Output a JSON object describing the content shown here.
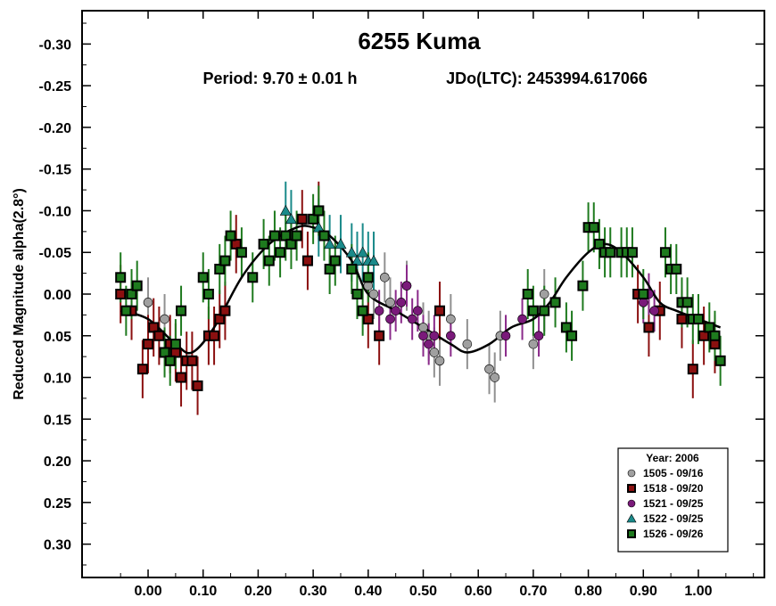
{
  "chart_data": {
    "type": "scatter",
    "title": "6255 Kuma",
    "subtitle_period": "Period: 9.70 ± 0.01 h",
    "subtitle_epoch": "JDo(LTC): 2453994.617066",
    "xlabel": "",
    "ylabel": "Reduced Magnitude alpha(2.8°)",
    "xlim": [
      -0.12,
      1.12
    ],
    "ylim": [
      -0.34,
      0.34
    ],
    "y_inverted": true,
    "x_ticks": [
      "0.00",
      "0.10",
      "0.20",
      "0.30",
      "0.40",
      "0.50",
      "0.60",
      "0.70",
      "0.80",
      "0.90",
      "1.00"
    ],
    "y_ticks": [
      "-0.30",
      "-0.25",
      "-0.20",
      "-0.15",
      "-0.10",
      "-0.05",
      "0.00",
      "0.05",
      "0.10",
      "0.15",
      "0.20",
      "0.25",
      "0.30"
    ],
    "legend_title": "Year: 2006",
    "legend_position": "bottom-right",
    "series": [
      {
        "name": "1505 - 09/16",
        "marker": "circle",
        "color": "#a0a0a0",
        "errcolor": "#909090",
        "err": 0.03,
        "x": [
          0.0,
          0.03,
          0.4,
          0.41,
          0.43,
          0.44,
          0.47,
          0.5,
          0.51,
          0.52,
          0.53,
          0.55,
          0.58,
          0.62,
          0.63,
          0.64,
          0.7,
          0.72
        ],
        "y": [
          0.01,
          0.03,
          -0.01,
          0.0,
          -0.02,
          0.01,
          -0.01,
          0.04,
          0.05,
          0.07,
          0.08,
          0.03,
          0.06,
          0.09,
          0.1,
          0.05,
          0.06,
          0.0
        ]
      },
      {
        "name": "1518 - 09/20",
        "marker": "square",
        "color": "#8b1010",
        "errcolor": "#8b1010",
        "err": 0.035,
        "x": [
          -0.05,
          -0.03,
          -0.01,
          0.0,
          0.01,
          0.02,
          0.04,
          0.05,
          0.06,
          0.07,
          0.08,
          0.09,
          0.11,
          0.12,
          0.13,
          0.14,
          0.16,
          0.28,
          0.29,
          0.31,
          0.4,
          0.42,
          0.53,
          0.89,
          0.91,
          0.93,
          0.97,
          0.99,
          1.01,
          1.03
        ],
        "y": [
          0.0,
          0.02,
          0.09,
          0.06,
          0.04,
          0.05,
          0.06,
          0.07,
          0.1,
          0.08,
          0.08,
          0.11,
          0.05,
          0.05,
          0.03,
          0.02,
          -0.06,
          -0.09,
          -0.04,
          -0.1,
          0.03,
          0.05,
          0.02,
          0.0,
          0.04,
          0.02,
          0.03,
          0.09,
          0.05,
          0.06
        ]
      },
      {
        "name": "1521 - 09/25",
        "marker": "circle",
        "color": "#7a1a7a",
        "errcolor": "#8a2a8a",
        "err": 0.025,
        "x": [
          0.42,
          0.44,
          0.45,
          0.46,
          0.47,
          0.48,
          0.49,
          0.5,
          0.51,
          0.52,
          0.55,
          0.65,
          0.68,
          0.71,
          0.72,
          0.9,
          0.91,
          0.92
        ],
        "y": [
          0.02,
          0.03,
          0.02,
          0.01,
          -0.01,
          0.03,
          0.02,
          0.05,
          0.06,
          0.05,
          0.05,
          0.05,
          0.03,
          0.05,
          0.02,
          0.01,
          0.0,
          0.02
        ]
      },
      {
        "name": "1522 - 09/25",
        "marker": "triangle",
        "color": "#1a8a8a",
        "errcolor": "#1a8a8a",
        "err": 0.035,
        "x": [
          0.25,
          0.26,
          0.31,
          0.33,
          0.35,
          0.37,
          0.38,
          0.39,
          0.4,
          0.41
        ],
        "y": [
          -0.1,
          -0.09,
          -0.08,
          -0.06,
          -0.06,
          -0.05,
          -0.04,
          -0.05,
          -0.04,
          -0.04
        ]
      },
      {
        "name": "1526 - 09/26",
        "marker": "square",
        "color": "#1e7a1e",
        "errcolor": "#1e7a1e",
        "err": 0.03,
        "x": [
          -0.05,
          -0.04,
          -0.03,
          -0.02,
          0.03,
          0.04,
          0.05,
          0.06,
          0.1,
          0.11,
          0.13,
          0.14,
          0.15,
          0.17,
          0.19,
          0.21,
          0.22,
          0.23,
          0.24,
          0.25,
          0.26,
          0.27,
          0.3,
          0.31,
          0.32,
          0.33,
          0.34,
          0.37,
          0.38,
          0.39,
          0.4,
          0.69,
          0.7,
          0.72,
          0.74,
          0.76,
          0.77,
          0.79,
          0.8,
          0.81,
          0.82,
          0.83,
          0.84,
          0.86,
          0.87,
          0.88,
          0.9,
          0.94,
          0.95,
          0.96,
          0.97,
          0.98,
          0.99,
          1.0,
          1.02,
          1.03,
          1.04
        ],
        "y": [
          -0.02,
          0.02,
          0.0,
          -0.01,
          0.07,
          0.08,
          0.06,
          0.02,
          -0.02,
          0.0,
          -0.03,
          -0.04,
          -0.07,
          -0.05,
          -0.02,
          -0.06,
          -0.04,
          -0.07,
          -0.05,
          -0.07,
          -0.06,
          -0.07,
          -0.09,
          -0.1,
          -0.07,
          -0.03,
          -0.04,
          -0.03,
          0.0,
          0.02,
          -0.02,
          0.0,
          0.02,
          0.02,
          0.01,
          0.04,
          0.05,
          -0.01,
          -0.08,
          -0.08,
          -0.06,
          -0.05,
          -0.05,
          -0.05,
          -0.05,
          -0.05,
          0.0,
          -0.05,
          -0.03,
          -0.03,
          0.01,
          0.01,
          0.03,
          0.03,
          0.04,
          0.05,
          0.08
        ]
      }
    ],
    "fit_curve": {
      "x": [
        -0.05,
        0.0,
        0.05,
        0.08,
        0.12,
        0.17,
        0.22,
        0.27,
        0.3,
        0.33,
        0.37,
        0.4,
        0.45,
        0.5,
        0.55,
        0.58,
        0.62,
        0.66,
        0.7,
        0.73,
        0.76,
        0.8,
        0.83,
        0.86,
        0.9,
        0.93,
        0.96,
        1.0,
        1.04
      ],
      "y": [
        0.02,
        0.03,
        0.06,
        0.07,
        0.04,
        -0.02,
        -0.06,
        -0.08,
        -0.08,
        -0.07,
        -0.04,
        0.0,
        0.02,
        0.04,
        0.06,
        0.07,
        0.06,
        0.04,
        0.03,
        0.01,
        -0.02,
        -0.05,
        -0.06,
        -0.05,
        -0.02,
        0.01,
        0.02,
        0.03,
        0.04
      ]
    }
  }
}
